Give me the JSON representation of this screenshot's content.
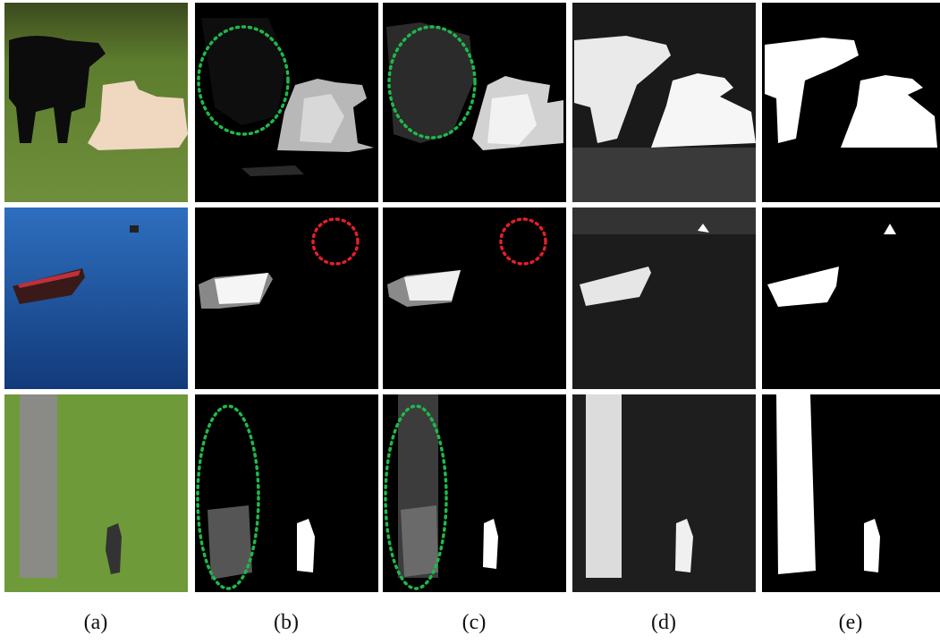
{
  "figure": {
    "panel_labels": [
      "(a)",
      "(b)",
      "(c)",
      "(d)",
      "(e)"
    ]
  }
}
